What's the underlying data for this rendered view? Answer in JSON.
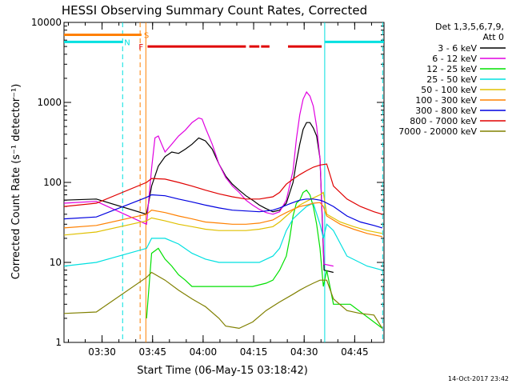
{
  "chart_data": {
    "type": "line",
    "title": "HESSI Observing Summary Count Rates, Corrected",
    "xlabel": "Start Time (06-May-15 03:18:42)",
    "ylabel": "Corrected Count Rate (s⁻¹ detector⁻¹)",
    "x_unit": "minutes after 03:18:42",
    "xlim": [
      0,
      95
    ],
    "ylim": [
      1,
      10000
    ],
    "y_scale": "log",
    "x_ticks": [
      {
        "label": "03:30",
        "value": 11.3
      },
      {
        "label": "03:45",
        "value": 26.3
      },
      {
        "label": "04:00",
        "value": 41.3
      },
      {
        "label": "04:15",
        "value": 56.3
      },
      {
        "label": "04:30",
        "value": 71.3
      },
      {
        "label": "04:45",
        "value": 86.3
      }
    ],
    "y_ticks": [
      {
        "label": "1",
        "value": 1
      },
      {
        "label": "10",
        "value": 10
      },
      {
        "label": "100",
        "value": 100
      },
      {
        "label": "1000",
        "value": 1000
      },
      {
        "label": "10000",
        "value": 10000
      }
    ],
    "legend": {
      "header1": "Det 1,3,5,6,7,9,",
      "header2": "Att 0",
      "position": "top-right outside"
    },
    "series": [
      {
        "name": "3 - 6 keV",
        "color": "#000000",
        "points": [
          [
            0,
            60
          ],
          [
            9.6,
            62
          ],
          [
            24.5,
            40
          ],
          [
            26,
            90
          ],
          [
            28,
            160
          ],
          [
            30,
            210
          ],
          [
            32,
            240
          ],
          [
            34,
            230
          ],
          [
            36,
            260
          ],
          [
            38,
            300
          ],
          [
            40,
            360
          ],
          [
            42,
            330
          ],
          [
            44,
            260
          ],
          [
            46,
            170
          ],
          [
            48,
            120
          ],
          [
            50,
            95
          ],
          [
            52,
            80
          ],
          [
            54,
            68
          ],
          [
            56,
            60
          ],
          [
            58,
            52
          ],
          [
            60,
            47
          ],
          [
            62,
            43
          ],
          [
            64,
            45
          ],
          [
            66,
            55
          ],
          [
            68,
            100
          ],
          [
            69,
            180
          ],
          [
            70,
            300
          ],
          [
            71,
            460
          ],
          [
            72,
            560
          ],
          [
            73,
            560
          ],
          [
            74,
            480
          ],
          [
            75,
            380
          ],
          [
            76,
            200
          ],
          [
            77.2,
            8
          ],
          [
            80,
            7.5
          ]
        ]
      },
      {
        "name": "6 - 12 keV",
        "color": "#e000e0",
        "points": [
          [
            0,
            55
          ],
          [
            9.6,
            58
          ],
          [
            24.5,
            30
          ],
          [
            26,
            150
          ],
          [
            27,
            360
          ],
          [
            28,
            380
          ],
          [
            29,
            300
          ],
          [
            30,
            240
          ],
          [
            32,
            300
          ],
          [
            34,
            380
          ],
          [
            36,
            450
          ],
          [
            38,
            560
          ],
          [
            40,
            640
          ],
          [
            41,
            620
          ],
          [
            42,
            480
          ],
          [
            44,
            300
          ],
          [
            46,
            170
          ],
          [
            48,
            115
          ],
          [
            50,
            90
          ],
          [
            52,
            75
          ],
          [
            54,
            60
          ],
          [
            56,
            52
          ],
          [
            58,
            46
          ],
          [
            60,
            42
          ],
          [
            62,
            40
          ],
          [
            64,
            43
          ],
          [
            66,
            60
          ],
          [
            68,
            140
          ],
          [
            69,
            350
          ],
          [
            70,
            700
          ],
          [
            71,
            1100
          ],
          [
            72,
            1350
          ],
          [
            73,
            1200
          ],
          [
            74,
            900
          ],
          [
            75,
            500
          ],
          [
            76,
            200
          ],
          [
            77.2,
            9.5
          ],
          [
            80,
            9
          ]
        ]
      },
      {
        "name": "12 - 25 keV",
        "color": "#00e000",
        "points": [
          [
            24.5,
            2
          ],
          [
            26,
            13
          ],
          [
            28,
            15
          ],
          [
            30,
            11
          ],
          [
            32,
            9
          ],
          [
            34,
            7
          ],
          [
            36,
            6
          ],
          [
            38,
            5
          ],
          [
            40,
            5
          ],
          [
            44,
            5
          ],
          [
            48,
            5
          ],
          [
            52,
            5
          ],
          [
            56,
            5
          ],
          [
            60,
            5.5
          ],
          [
            62,
            6
          ],
          [
            64,
            8
          ],
          [
            66,
            12
          ],
          [
            67,
            20
          ],
          [
            68,
            38
          ],
          [
            69,
            55
          ],
          [
            70,
            60
          ],
          [
            71,
            75
          ],
          [
            72,
            80
          ],
          [
            73,
            70
          ],
          [
            74,
            50
          ],
          [
            75,
            30
          ],
          [
            76,
            15
          ],
          [
            77,
            5
          ],
          [
            78,
            8
          ],
          [
            80,
            3
          ],
          [
            85,
            3
          ],
          [
            94.5,
            1.5
          ]
        ]
      },
      {
        "name": "25 - 50 keV",
        "color": "#00e0e0",
        "points": [
          [
            0,
            9
          ],
          [
            9.6,
            10
          ],
          [
            24.5,
            15
          ],
          [
            26,
            20
          ],
          [
            30,
            20
          ],
          [
            34,
            17
          ],
          [
            38,
            13
          ],
          [
            42,
            11
          ],
          [
            46,
            10
          ],
          [
            50,
            10
          ],
          [
            54,
            10
          ],
          [
            58,
            10
          ],
          [
            62,
            12
          ],
          [
            64,
            15
          ],
          [
            66,
            25
          ],
          [
            68,
            35
          ],
          [
            70,
            42
          ],
          [
            72,
            50
          ],
          [
            74,
            55
          ],
          [
            76,
            30
          ],
          [
            77,
            20
          ],
          [
            78,
            30
          ],
          [
            80,
            25
          ],
          [
            84,
            12
          ],
          [
            90,
            9
          ],
          [
            94.5,
            8
          ]
        ]
      },
      {
        "name": "50 - 100 keV",
        "color": "#e0c000",
        "points": [
          [
            0,
            22
          ],
          [
            9.6,
            24
          ],
          [
            24.5,
            33
          ],
          [
            26,
            36
          ],
          [
            30,
            33
          ],
          [
            34,
            30
          ],
          [
            38,
            28
          ],
          [
            42,
            26
          ],
          [
            46,
            25
          ],
          [
            50,
            25
          ],
          [
            54,
            25
          ],
          [
            58,
            26
          ],
          [
            62,
            28
          ],
          [
            64,
            32
          ],
          [
            66,
            38
          ],
          [
            68,
            45
          ],
          [
            70,
            52
          ],
          [
            72,
            58
          ],
          [
            74,
            64
          ],
          [
            76,
            70
          ],
          [
            77,
            75
          ],
          [
            78,
            40
          ],
          [
            82,
            32
          ],
          [
            86,
            28
          ],
          [
            90,
            25
          ],
          [
            94.5,
            23
          ]
        ]
      },
      {
        "name": "100 - 300 keV",
        "color": "#ff8000",
        "points": [
          [
            0,
            27
          ],
          [
            9.6,
            29
          ],
          [
            24.5,
            40
          ],
          [
            26,
            45
          ],
          [
            30,
            42
          ],
          [
            34,
            38
          ],
          [
            38,
            35
          ],
          [
            42,
            32
          ],
          [
            46,
            31
          ],
          [
            50,
            30
          ],
          [
            54,
            30
          ],
          [
            58,
            31
          ],
          [
            62,
            34
          ],
          [
            64,
            38
          ],
          [
            66,
            42
          ],
          [
            68,
            46
          ],
          [
            70,
            50
          ],
          [
            72,
            52
          ],
          [
            74,
            55
          ],
          [
            76,
            56
          ],
          [
            77,
            50
          ],
          [
            78,
            38
          ],
          [
            82,
            30
          ],
          [
            86,
            26
          ],
          [
            90,
            23
          ],
          [
            94.5,
            21
          ]
        ]
      },
      {
        "name": "300 - 800 keV",
        "color": "#0000e0",
        "points": [
          [
            0,
            35
          ],
          [
            9.6,
            37
          ],
          [
            24.5,
            65
          ],
          [
            26,
            70
          ],
          [
            30,
            68
          ],
          [
            34,
            62
          ],
          [
            38,
            57
          ],
          [
            42,
            52
          ],
          [
            46,
            48
          ],
          [
            50,
            45
          ],
          [
            54,
            44
          ],
          [
            58,
            43
          ],
          [
            62,
            45
          ],
          [
            64,
            48
          ],
          [
            66,
            52
          ],
          [
            68,
            56
          ],
          [
            70,
            60
          ],
          [
            72,
            62
          ],
          [
            74,
            62
          ],
          [
            76,
            60
          ],
          [
            77,
            58
          ],
          [
            80,
            50
          ],
          [
            84,
            38
          ],
          [
            88,
            32
          ],
          [
            92,
            29
          ],
          [
            94.5,
            27
          ]
        ]
      },
      {
        "name": "800 - 7000 keV",
        "color": "#e00000",
        "points": [
          [
            0,
            50
          ],
          [
            9.6,
            55
          ],
          [
            24.5,
            100
          ],
          [
            26,
            112
          ],
          [
            30,
            110
          ],
          [
            34,
            100
          ],
          [
            38,
            90
          ],
          [
            42,
            80
          ],
          [
            46,
            72
          ],
          [
            50,
            66
          ],
          [
            54,
            62
          ],
          [
            58,
            62
          ],
          [
            62,
            66
          ],
          [
            64,
            75
          ],
          [
            66,
            95
          ],
          [
            68,
            110
          ],
          [
            70,
            125
          ],
          [
            72,
            140
          ],
          [
            74,
            155
          ],
          [
            76,
            165
          ],
          [
            78,
            170
          ],
          [
            80,
            90
          ],
          [
            84,
            62
          ],
          [
            88,
            50
          ],
          [
            92,
            43
          ],
          [
            94.5,
            40
          ]
        ]
      },
      {
        "name": "7000 - 20000 keV",
        "color": "#808000",
        "points": [
          [
            0,
            2.3
          ],
          [
            9.6,
            2.4
          ],
          [
            24.5,
            6.5
          ],
          [
            26,
            7.5
          ],
          [
            30,
            6
          ],
          [
            34,
            4.5
          ],
          [
            38,
            3.5
          ],
          [
            42,
            2.8
          ],
          [
            46,
            2
          ],
          [
            48,
            1.6
          ],
          [
            52,
            1.5
          ],
          [
            56,
            1.8
          ],
          [
            60,
            2.5
          ],
          [
            64,
            3.2
          ],
          [
            68,
            4
          ],
          [
            70,
            4.5
          ],
          [
            72,
            5
          ],
          [
            74,
            5.5
          ],
          [
            76,
            6
          ],
          [
            78,
            6
          ],
          [
            80,
            3.5
          ],
          [
            84,
            2.5
          ],
          [
            88,
            2.3
          ],
          [
            92,
            2.2
          ],
          [
            94.5,
            1.5
          ]
        ]
      }
    ],
    "annotations": [
      {
        "label": "S",
        "color": "#ff8000",
        "x0": 0,
        "x1": 23,
        "y": 7000
      },
      {
        "label": "N",
        "color": "#00e0e0",
        "x0": 0,
        "x1": 17.4,
        "y": 5700
      },
      {
        "label": "F",
        "color": "#e00000",
        "segments": [
          [
            24.8,
            54
          ],
          [
            55,
            58
          ],
          [
            58.5,
            61
          ],
          [
            66.5,
            76.5
          ]
        ],
        "y": 5000
      },
      {
        "label": "",
        "color": "#00e0e0",
        "x0": 77.5,
        "x1": 95,
        "y": 5700
      }
    ],
    "vlines": [
      {
        "x": 17.4,
        "color": "#00e0e0",
        "style": "dashed"
      },
      {
        "x": 22.6,
        "color": "#ff8000",
        "style": "dashed"
      },
      {
        "x": 24.3,
        "color": "#ff8000",
        "style": "solid"
      },
      {
        "x": 77.4,
        "color": "#00e0e0",
        "style": "solid"
      },
      {
        "x": 94.6,
        "color": "#00e0e0",
        "style": "dashed"
      }
    ],
    "timestamp": "14-Oct-2017 23:42"
  }
}
